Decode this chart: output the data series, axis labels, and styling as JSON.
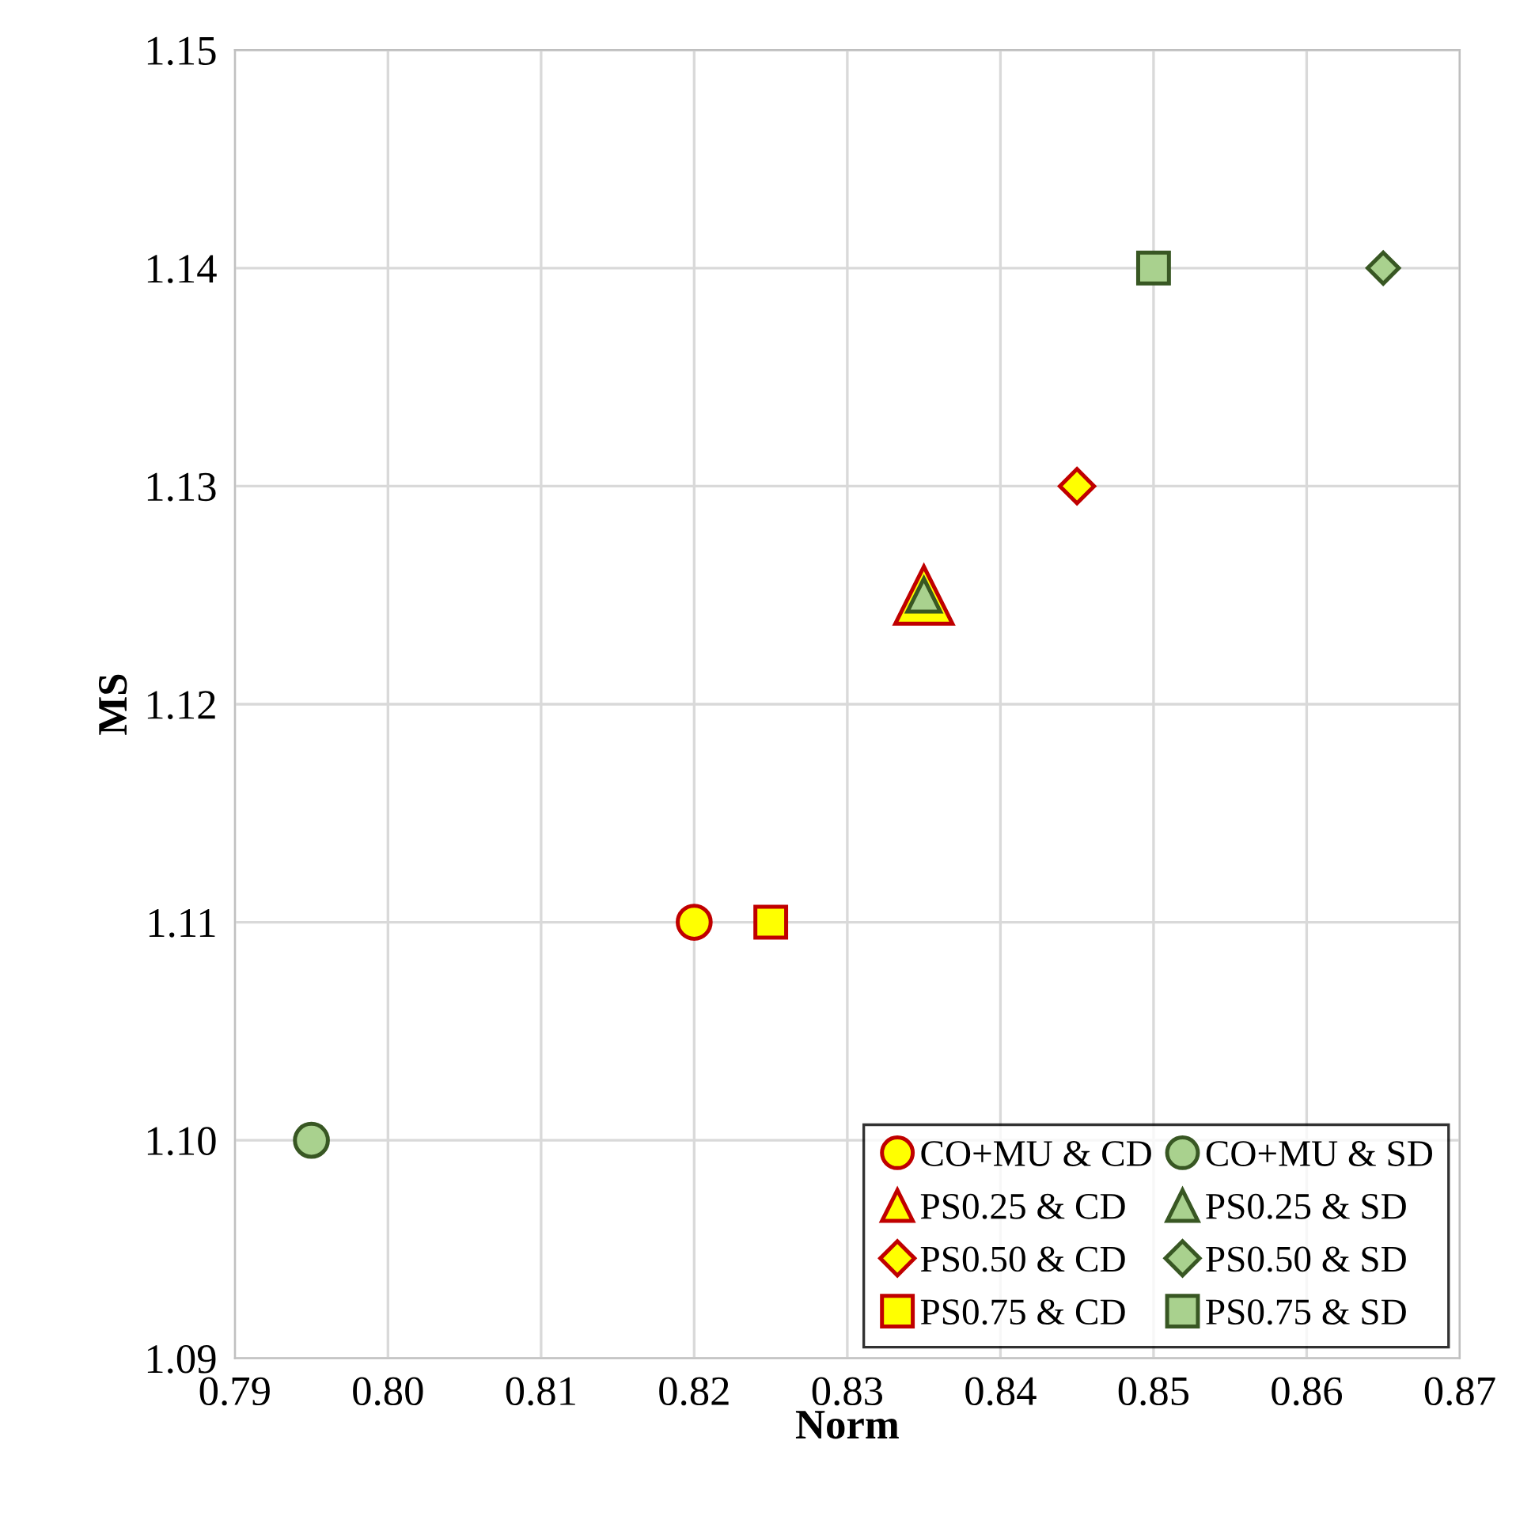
{
  "chart_data": {
    "type": "scatter",
    "xlabel": "Norm",
    "ylabel": "MS",
    "xlim": [
      0.79,
      0.87
    ],
    "xticks": [
      {
        "value": 0.79,
        "label": "0.79"
      },
      {
        "value": 0.8,
        "label": "0.80"
      },
      {
        "value": 0.81,
        "label": "0.81"
      },
      {
        "value": 0.82,
        "label": "0.82"
      },
      {
        "value": 0.83,
        "label": "0.83"
      },
      {
        "value": 0.84,
        "label": "0.84"
      },
      {
        "value": 0.85,
        "label": "0.85"
      },
      {
        "value": 0.86,
        "label": "0.86"
      },
      {
        "value": 0.87,
        "label": "0.87"
      }
    ],
    "ylim": [
      1.09,
      1.15
    ],
    "yticks": [
      {
        "value": 1.09,
        "label": "1.09"
      },
      {
        "value": 1.1,
        "label": "1.10"
      },
      {
        "value": 1.11,
        "label": "1.11"
      },
      {
        "value": 1.12,
        "label": "1.12"
      },
      {
        "value": 1.13,
        "label": "1.13"
      },
      {
        "value": 1.14,
        "label": "1.14"
      },
      {
        "value": 1.15,
        "label": "1.15"
      }
    ],
    "grid": true,
    "legend": "bottom right",
    "series": [
      {
        "name": "CO+MU & CD",
        "color": "#ffff00",
        "marker": "circle",
        "x": [
          0.82
        ],
        "values": [
          1.11
        ]
      },
      {
        "name": "CO+MU & SD",
        "color": "#a9d18e",
        "marker": "circle",
        "x": [
          0.795
        ],
        "values": [
          1.1
        ]
      },
      {
        "name": "PS0.25 & CD",
        "color": "#ffff00",
        "marker": "triangle",
        "x": [
          0.835
        ],
        "values": [
          1.125
        ]
      },
      {
        "name": "PS0.25 & SD",
        "color": "#a9d18e",
        "marker": "triangle",
        "x": [
          0.835
        ],
        "values": [
          1.125
        ]
      },
      {
        "name": "PS0.50 & CD",
        "color": "#ffff00",
        "marker": "diamond",
        "x": [
          0.845
        ],
        "values": [
          1.13
        ]
      },
      {
        "name": "PS0.50 & SD",
        "color": "#a9d18e",
        "marker": "diamond",
        "x": [
          0.865
        ],
        "values": [
          1.14
        ]
      },
      {
        "name": "PS0.75 & CD",
        "color": "#ffff00",
        "marker": "square",
        "x": [
          0.825
        ],
        "values": [
          1.11
        ]
      },
      {
        "name": "PS0.75 & SD",
        "color": "#a9d18e",
        "marker": "square",
        "x": [
          0.85
        ],
        "values": [
          1.14
        ]
      }
    ]
  }
}
